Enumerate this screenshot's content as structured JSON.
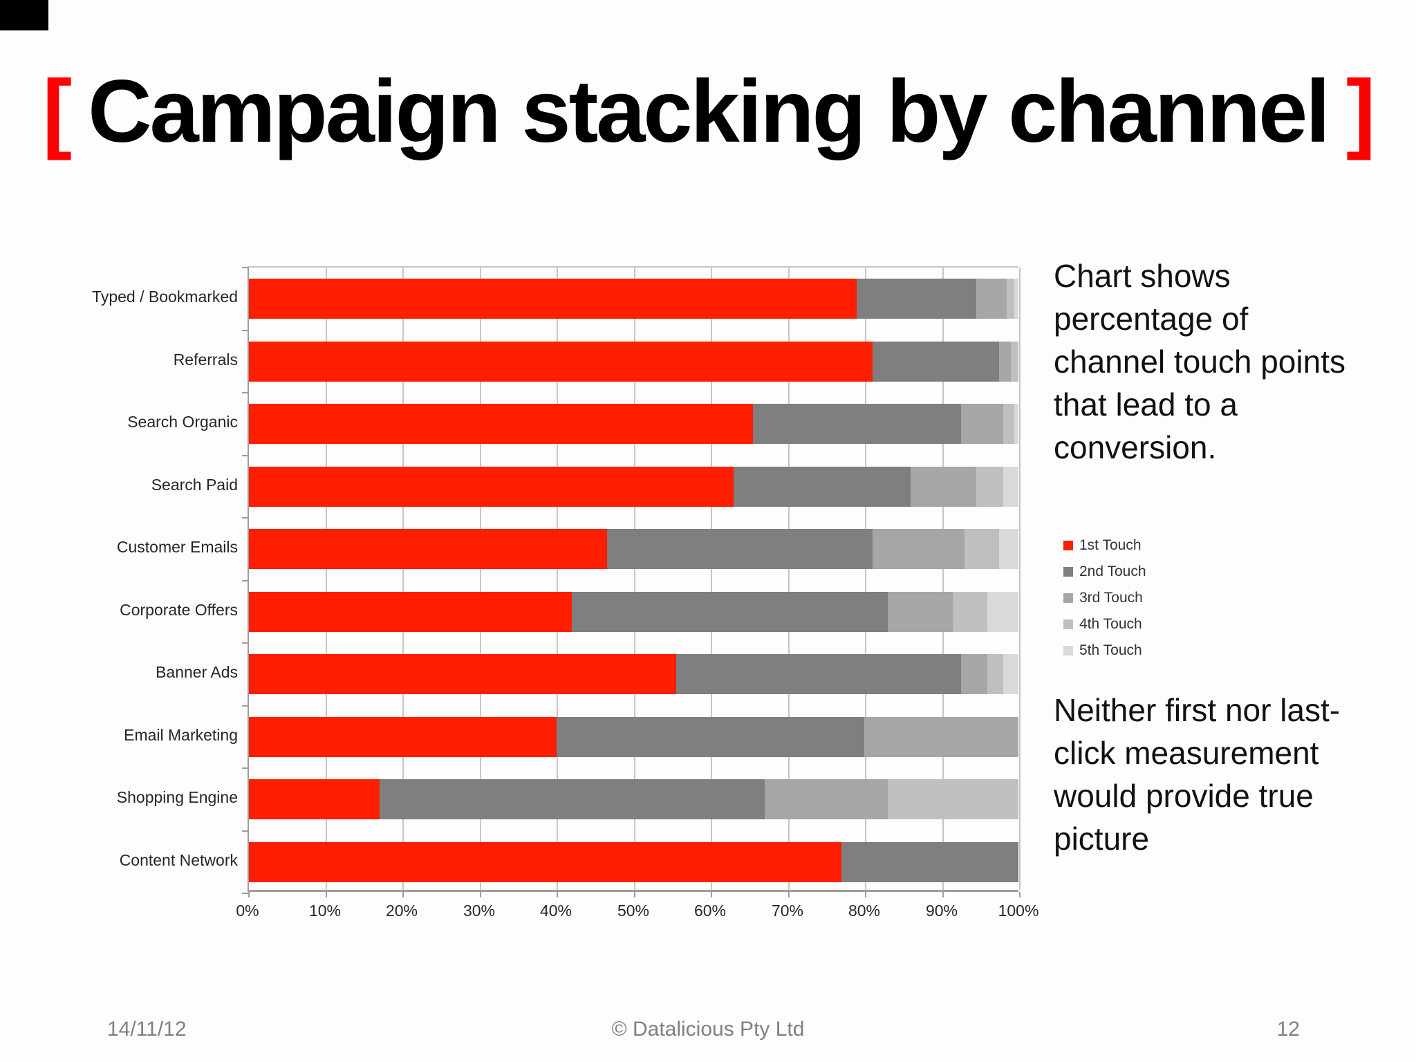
{
  "slide": {
    "title": {
      "open_bracket": "[",
      "text": "Campaign stacking by channel",
      "close_bracket": "]"
    },
    "annotation_top": "Chart shows percentage of channel touch points that lead to a conversion.",
    "annotation_bottom": "Neither first nor last-click measurement would provide true picture",
    "footer": {
      "date": "14/11/12",
      "copyright": "© Datalicious Pty Ltd",
      "page_number": "12"
    }
  },
  "colors": {
    "accent_red": "#ff1e00",
    "bracket_red": "#ff0000",
    "gridline": "#c6c6c6",
    "axis": "#9d9d9d",
    "footer_text": "#808080"
  },
  "chart_data": {
    "type": "bar",
    "orientation": "horizontal",
    "stacked": true,
    "title": "",
    "xlabel": "",
    "ylabel": "",
    "xlim": [
      0,
      100
    ],
    "grid": true,
    "legend_position": "right",
    "x_ticks": [
      "0%",
      "10%",
      "20%",
      "30%",
      "40%",
      "50%",
      "60%",
      "70%",
      "80%",
      "90%",
      "100%"
    ],
    "categories": [
      "Typed / Bookmarked",
      "Referrals",
      "Search Organic",
      "Search Paid",
      "Customer Emails",
      "Corporate Offers",
      "Banner Ads",
      "Email Marketing",
      "Shopping Engine",
      "Content Network"
    ],
    "series": [
      {
        "name": "1st Touch",
        "color": "#ff1e00",
        "values": [
          79,
          81,
          65.5,
          63,
          46.5,
          42,
          55.5,
          40,
          17,
          77
        ]
      },
      {
        "name": "2nd Touch",
        "color": "#7f7f7f",
        "values": [
          15.5,
          16.5,
          27,
          23,
          34.5,
          41,
          37,
          40,
          50,
          23
        ]
      },
      {
        "name": "3rd Touch",
        "color": "#a6a6a6",
        "values": [
          4,
          1.5,
          5.5,
          8.5,
          12,
          8.5,
          3.5,
          20,
          16,
          0
        ]
      },
      {
        "name": "4th Touch",
        "color": "#bfbfbf",
        "values": [
          1,
          1,
          1.5,
          3.5,
          4.5,
          4.5,
          2,
          0,
          17,
          0
        ]
      },
      {
        "name": "5th Touch",
        "color": "#d9d9d9",
        "values": [
          0.5,
          0,
          0.5,
          2,
          2.5,
          4,
          2,
          0,
          0,
          0
        ]
      }
    ],
    "units": "percent of conversions by touch position per channel"
  }
}
